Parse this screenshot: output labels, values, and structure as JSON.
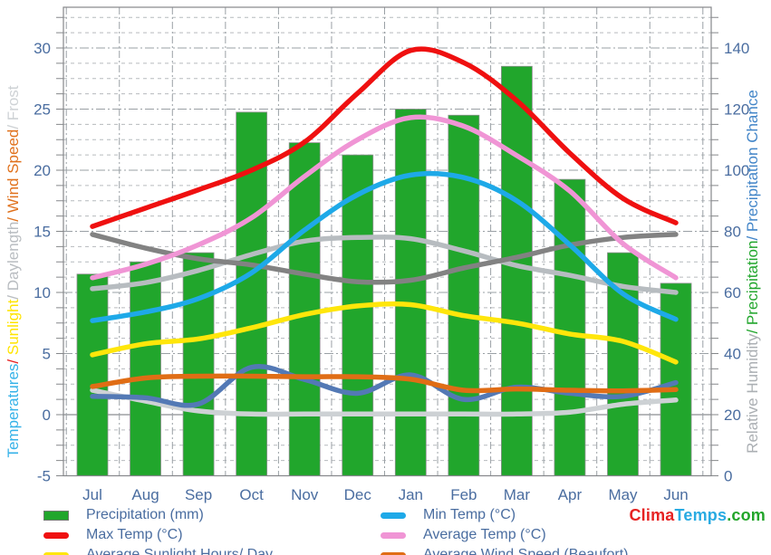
{
  "branding": {
    "logo_parts": [
      {
        "text": "Clima",
        "color": "#e62222"
      },
      {
        "text": "Temps",
        "color": "#29abe2"
      },
      {
        "text": ".com",
        "color": "#22a52a"
      }
    ]
  },
  "axes": {
    "left": {
      "title_segments": [
        {
          "text": "Temperatures",
          "color": "#35b2e8"
        },
        {
          "text": "/ ",
          "color": "#e62222"
        },
        {
          "text": "Sunlight",
          "color": "#ffe400"
        },
        {
          "text": "/ Daylength",
          "color": "#b9bdc1"
        },
        {
          "text": "/ Wind Speed",
          "color": "#e0711c"
        },
        {
          "text": "/ Frost",
          "color": "#ced2d5"
        }
      ],
      "tick_labels": [
        30,
        25,
        20,
        15,
        10,
        5,
        0,
        -5
      ]
    },
    "right": {
      "title_segments": [
        {
          "text": "Relative Humidity",
          "color": "#abafb3"
        },
        {
          "text": "/ ",
          "color": "#21a62c"
        },
        {
          "text": "Precipitation",
          "color": "#21a62c"
        },
        {
          "text": "/ ",
          "color": "#4285c8"
        },
        {
          "text": "Precipitation Chance",
          "color": "#4285c8"
        }
      ],
      "tick_labels": [
        140,
        120,
        100,
        80,
        60,
        40,
        20,
        0
      ]
    },
    "x": {
      "categories": [
        "Jul",
        "Aug",
        "Sep",
        "Oct",
        "Nov",
        "Dec",
        "Jan",
        "Feb",
        "Mar",
        "Apr",
        "May",
        "Jun"
      ]
    }
  },
  "chart_data": {
    "type": "mixed",
    "title": "",
    "categories": [
      "Jul",
      "Aug",
      "Sep",
      "Oct",
      "Nov",
      "Dec",
      "Jan",
      "Feb",
      "Mar",
      "Apr",
      "May",
      "Jun"
    ],
    "left_axis_range": [
      -5,
      33.3
    ],
    "right_axis_range": [
      0,
      153.3
    ],
    "grid": true,
    "series": [
      {
        "id": "precipitation",
        "name": "Precipitation (mm)",
        "type": "bar",
        "axis": "right",
        "color": "#21a62c",
        "values": [
          66,
          70,
          73,
          119,
          109,
          105,
          120,
          118,
          134,
          97,
          73,
          63
        ]
      },
      {
        "id": "frost",
        "name": "Frost",
        "type": "line",
        "axis": "left",
        "color": "#cdd1d4",
        "values": [
          2.0,
          1.1,
          0.3,
          0.05,
          0.05,
          0.05,
          0.05,
          0.05,
          0.05,
          0.2,
          0.85,
          1.2
        ]
      },
      {
        "id": "precip-chance",
        "name": "Precipitation Chance",
        "type": "line",
        "axis": "right",
        "color": "#5379b5",
        "values": [
          26,
          25.5,
          23.5,
          35.5,
          31.5,
          27,
          33,
          25,
          29,
          27,
          26,
          30.5
        ]
      },
      {
        "id": "daylength",
        "name": "Daylength",
        "type": "line",
        "axis": "left",
        "color": "#b7bcc0",
        "values": [
          10.3,
          10.8,
          11.8,
          13.1,
          14.2,
          14.5,
          14.4,
          13.4,
          12.2,
          11.4,
          10.5,
          10.0
        ]
      },
      {
        "id": "relative-humidity",
        "name": "Relative Humidity",
        "type": "line",
        "axis": "right",
        "color": "#828282",
        "values": [
          79,
          74.5,
          71,
          69,
          66,
          63.5,
          64,
          68,
          71.5,
          75.5,
          78,
          79
        ]
      },
      {
        "id": "sunlight",
        "name": "Average Sunlight Hours/ Day",
        "type": "line",
        "axis": "left",
        "color": "#ffe60a",
        "values": [
          4.9,
          5.8,
          6.2,
          7.1,
          8.2,
          8.9,
          9.0,
          8.1,
          7.5,
          6.6,
          6.0,
          4.3
        ]
      },
      {
        "id": "wind",
        "name": "Average Wind Speed (Beaufort)",
        "type": "line",
        "axis": "left",
        "color": "#e06d15",
        "values": [
          2.3,
          3.0,
          3.15,
          3.15,
          3.1,
          3.1,
          2.9,
          2.0,
          2.1,
          2.0,
          1.95,
          2.05
        ]
      },
      {
        "id": "min-temp",
        "name": "Min Temp (°C)",
        "type": "line",
        "axis": "left",
        "color": "#1ea9e8",
        "values": [
          7.7,
          8.4,
          9.5,
          11.6,
          15.1,
          18.0,
          19.6,
          19.4,
          17.5,
          13.9,
          9.9,
          7.8
        ]
      },
      {
        "id": "avg-temp",
        "name": "Average Temp (°C)",
        "type": "line",
        "axis": "left",
        "color": "#f095d5",
        "values": [
          11.2,
          12.3,
          13.9,
          16.1,
          19.5,
          22.5,
          24.3,
          23.6,
          21.2,
          18.3,
          14.0,
          11.2
        ]
      },
      {
        "id": "max-temp",
        "name": "Max Temp (°C)",
        "type": "line",
        "axis": "left",
        "color": "#ef1010",
        "values": [
          15.4,
          16.9,
          18.4,
          20.0,
          22.3,
          26.3,
          29.8,
          28.8,
          25.7,
          21.4,
          17.7,
          15.7
        ]
      }
    ]
  },
  "legend": {
    "columns": [
      {
        "items": [
          {
            "label": "Precipitation (mm)",
            "color": "#21a62c",
            "swatch": "rect"
          },
          {
            "label": "Max Temp (°C)",
            "color": "#ef1010",
            "swatch": "line"
          },
          {
            "label": "Average Sunlight Hours/ Day",
            "color": "#ffe60a",
            "swatch": "line"
          }
        ]
      },
      {
        "items": [
          {
            "label": "Min Temp (°C)",
            "color": "#1ea9e8",
            "swatch": "line"
          },
          {
            "label": "Average Temp (°C)",
            "color": "#f095d5",
            "swatch": "line"
          },
          {
            "label": "Average Wind Speed (Beaufort)",
            "color": "#e06d15",
            "swatch": "line"
          }
        ]
      }
    ]
  }
}
